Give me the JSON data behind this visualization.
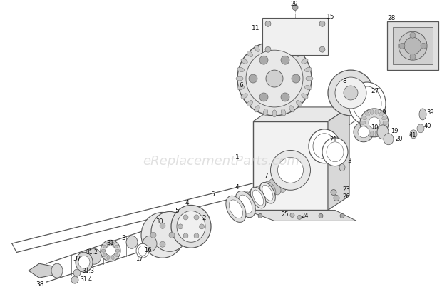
{
  "bg_color": "#ffffff",
  "line_color": "#555555",
  "label_color": "#111111",
  "watermark": "eReplacementParts.com",
  "watermark_color": "#cccccc",
  "figw": 6.2,
  "figh": 4.31,
  "dpi": 100
}
